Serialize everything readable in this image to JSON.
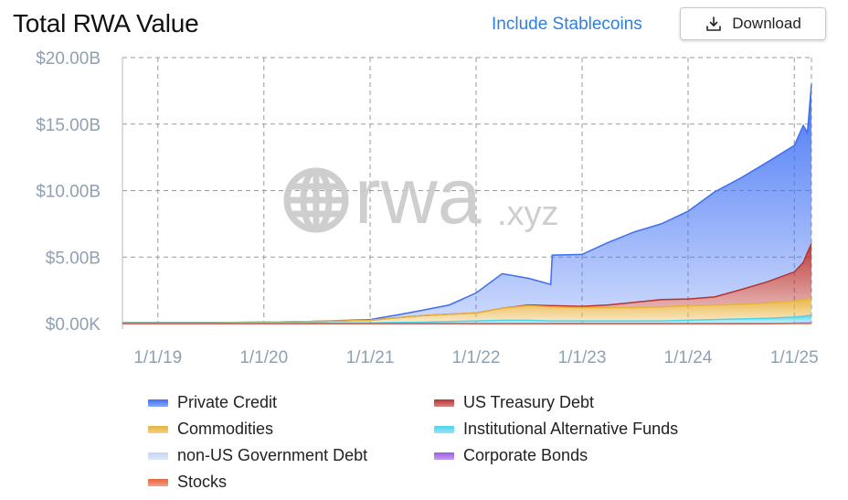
{
  "header": {
    "title": "Total RWA Value",
    "toggle_label": "Include Stablecoins",
    "download_label": "Download"
  },
  "watermark": {
    "main": "rwa",
    "suffix": ".xyz"
  },
  "chart_data": {
    "type": "area",
    "stacked": true,
    "title": "Total RWA Value",
    "xlabel": "",
    "ylabel": "",
    "ylim": [
      0,
      20
    ],
    "y_unit": "billions USD",
    "y_ticks": [
      0,
      5,
      10,
      15,
      20
    ],
    "y_tick_labels": [
      "$0.00K",
      "$5.00B",
      "$10.00B",
      "$15.00B",
      "$20.00B"
    ],
    "x_ticks": [
      "2019-01-01",
      "2020-01-01",
      "2021-01-01",
      "2022-01-01",
      "2023-01-01",
      "2024-01-01",
      "2025-01-01"
    ],
    "x_tick_labels": [
      "1/1/19",
      "1/1/20",
      "1/1/21",
      "1/1/22",
      "1/1/23",
      "1/1/24",
      "1/1/25"
    ],
    "xlim": [
      "2018-09-01",
      "2025-03-01"
    ],
    "grid": true,
    "legend_position": "bottom",
    "x": [
      "2018-09-01",
      "2019-06-01",
      "2020-01-01",
      "2020-06-01",
      "2021-01-01",
      "2021-04-01",
      "2021-07-01",
      "2021-10-01",
      "2022-01-01",
      "2022-04-01",
      "2022-07-01",
      "2022-09-15",
      "2022-09-20",
      "2023-01-01",
      "2023-04-01",
      "2023-07-01",
      "2023-10-01",
      "2024-01-01",
      "2024-04-01",
      "2024-07-01",
      "2024-10-01",
      "2025-01-01",
      "2025-02-01",
      "2025-02-15",
      "2025-03-01"
    ],
    "series": [
      {
        "name": "Stocks",
        "color": "#e8633c",
        "values": [
          0,
          0,
          0,
          0,
          0,
          0,
          0,
          0,
          0,
          0,
          0,
          0,
          0,
          0,
          0,
          0,
          0,
          0,
          0,
          0,
          0,
          0.01,
          0.01,
          0.01,
          0.02
        ]
      },
      {
        "name": "Corporate Bonds",
        "color": "#9b5de5",
        "values": [
          0,
          0,
          0,
          0,
          0,
          0,
          0,
          0,
          0,
          0,
          0,
          0,
          0,
          0,
          0,
          0,
          0,
          0,
          0,
          0,
          0,
          0.02,
          0.03,
          0.03,
          0.03
        ]
      },
      {
        "name": "non-US Government Debt",
        "color": "#c7d4f4",
        "values": [
          0,
          0,
          0,
          0,
          0,
          0,
          0,
          0,
          0,
          0,
          0,
          0,
          0,
          0,
          0,
          0,
          0,
          0,
          0,
          0,
          0,
          0.01,
          0.01,
          0.01,
          0.01
        ]
      },
      {
        "name": "Institutional Alternative Funds",
        "color": "#4fd3ec",
        "values": [
          0.05,
          0.05,
          0.05,
          0.05,
          0.05,
          0.08,
          0.1,
          0.15,
          0.2,
          0.25,
          0.25,
          0.2,
          0.2,
          0.2,
          0.2,
          0.2,
          0.2,
          0.25,
          0.3,
          0.35,
          0.4,
          0.45,
          0.5,
          0.55,
          0.55
        ]
      },
      {
        "name": "Commodities",
        "color": "#e8b23a",
        "values": [
          0.02,
          0.02,
          0.05,
          0.1,
          0.2,
          0.35,
          0.5,
          0.55,
          0.6,
          0.9,
          1.1,
          1.05,
          1.05,
          1.0,
          1.0,
          1.0,
          1.05,
          1.1,
          1.1,
          1.1,
          1.15,
          1.2,
          1.25,
          1.25,
          1.3
        ]
      },
      {
        "name": "US Treasury Debt",
        "color": "#b9322e",
        "values": [
          0,
          0,
          0,
          0,
          0,
          0,
          0,
          0,
          0,
          0,
          0.05,
          0.1,
          0.1,
          0.1,
          0.2,
          0.4,
          0.55,
          0.5,
          0.6,
          1.1,
          1.6,
          2.2,
          2.8,
          3.5,
          4.1
        ]
      },
      {
        "name": "Private Credit",
        "color": "#3d6ff5",
        "values": [
          0,
          0,
          0,
          0,
          0.05,
          0.2,
          0.4,
          0.7,
          1.5,
          2.6,
          2.0,
          1.6,
          3.8,
          3.9,
          4.7,
          5.3,
          5.7,
          6.6,
          7.9,
          8.4,
          9.0,
          9.5,
          10.3,
          9.0,
          12.0
        ]
      }
    ]
  },
  "legend": {
    "items": [
      {
        "label": "Private Credit",
        "color": "#3d6ff5"
      },
      {
        "label": "US Treasury Debt",
        "color": "#b9322e"
      },
      {
        "label": "Commodities",
        "color": "#e8b23a"
      },
      {
        "label": "Institutional Alternative Funds",
        "color": "#4fd3ec"
      },
      {
        "label": "non-US Government Debt",
        "color": "#c7d4f4"
      },
      {
        "label": "Corporate Bonds",
        "color": "#9b5de5"
      },
      {
        "label": "Stocks",
        "color": "#e8633c"
      }
    ]
  }
}
